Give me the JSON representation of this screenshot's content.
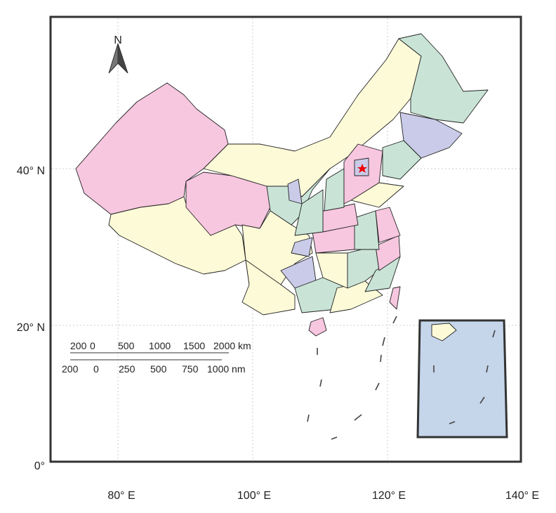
{
  "north_label": "N",
  "lat_labels": [
    "40° N",
    "20° N",
    "0°"
  ],
  "lon_labels": [
    "80° E",
    "100° E",
    "120° E",
    "140° E"
  ],
  "scale_km": [
    "200",
    "0",
    "500",
    "1000",
    "1500",
    "2000 km"
  ],
  "scale_nm": [
    "200",
    "0",
    "250",
    "500",
    "750",
    "1000 nm"
  ]
}
